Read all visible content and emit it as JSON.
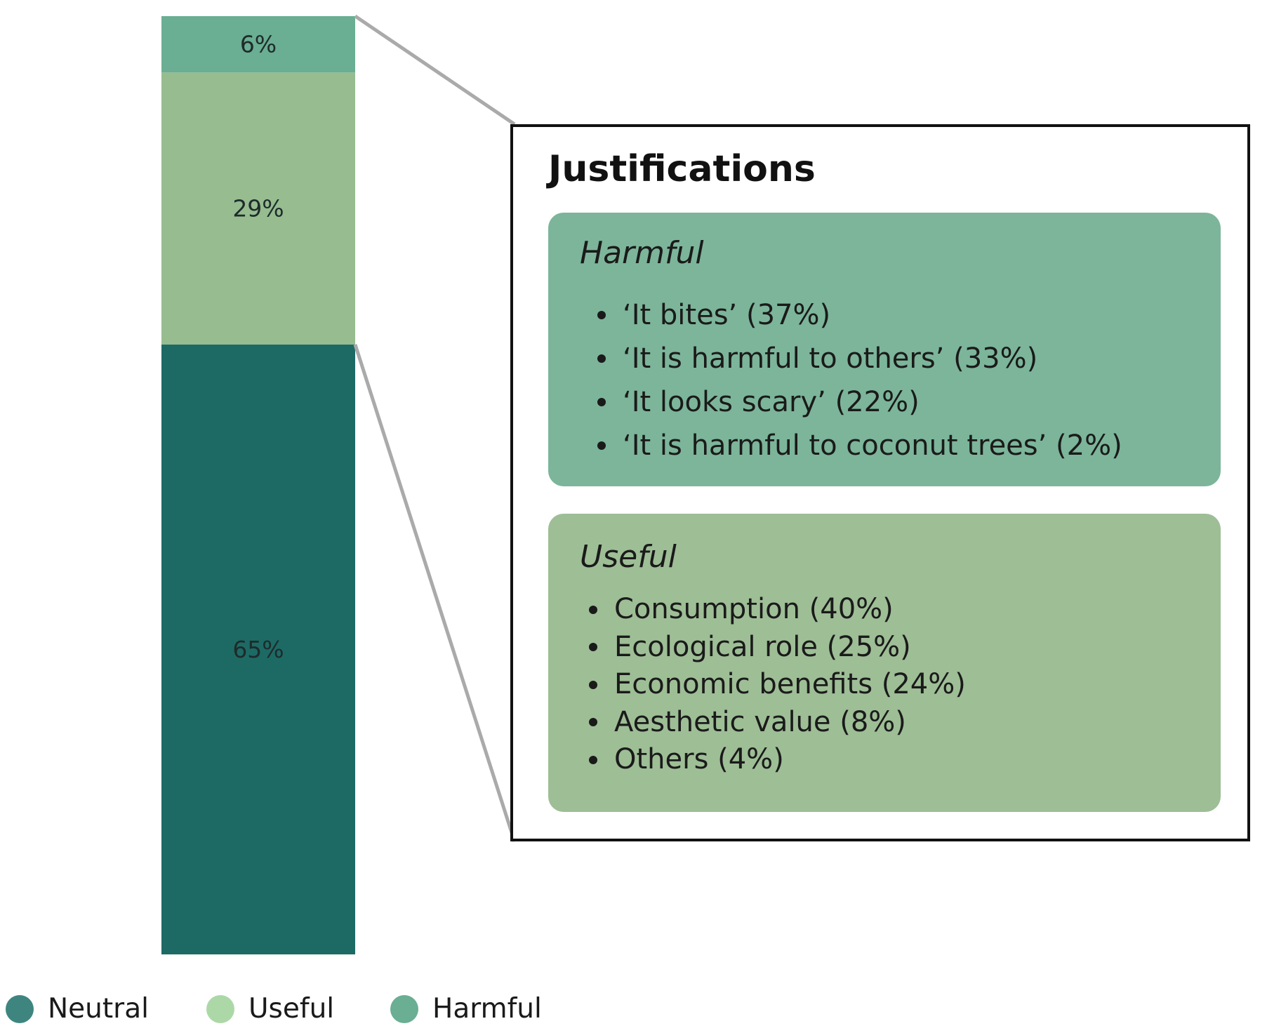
{
  "colors": {
    "neutral": "#1d6a65",
    "useful_bar": "#96bc90",
    "harmful_bar": "#6aae93",
    "harmful_panel": "#7cb59a",
    "useful_panel": "#9ebe96",
    "legend_neutral": "#3e8580",
    "legend_useful": "#acd8a8",
    "legend_harmful": "#6aae93",
    "connector": "#aaaaaa"
  },
  "chart_data": {
    "type": "bar",
    "stacked": true,
    "categories": [
      ""
    ],
    "series": [
      {
        "name": "Neutral",
        "values": [
          65
        ],
        "label": "65%",
        "color_key": "neutral"
      },
      {
        "name": "Useful",
        "values": [
          29
        ],
        "label": "29%",
        "color_key": "useful_bar"
      },
      {
        "name": "Harmful",
        "values": [
          6
        ],
        "label": "6%",
        "color_key": "harmful_bar"
      }
    ],
    "ylim": [
      0,
      100
    ],
    "grid": false,
    "legend_position": "bottom-left"
  },
  "justifications": {
    "title": "Justifications",
    "harmful": {
      "title": "Harmful",
      "items": [
        "‘It bites’ (37%)",
        "‘It is harmful to others’ (33%)",
        "‘It looks scary’ (22%)",
        "‘It is harmful to coconut trees’ (2%)"
      ]
    },
    "useful": {
      "title": "Useful",
      "items": [
        "Consumption (40%)",
        "Ecological role (25%)",
        "Economic benefits (24%)",
        "Aesthetic value (8%)",
        "Others (4%)"
      ]
    }
  },
  "legend": [
    {
      "label": "Neutral",
      "color_key": "legend_neutral"
    },
    {
      "label": "Useful",
      "color_key": "legend_useful"
    },
    {
      "label": "Harmful",
      "color_key": "legend_harmful"
    }
  ]
}
